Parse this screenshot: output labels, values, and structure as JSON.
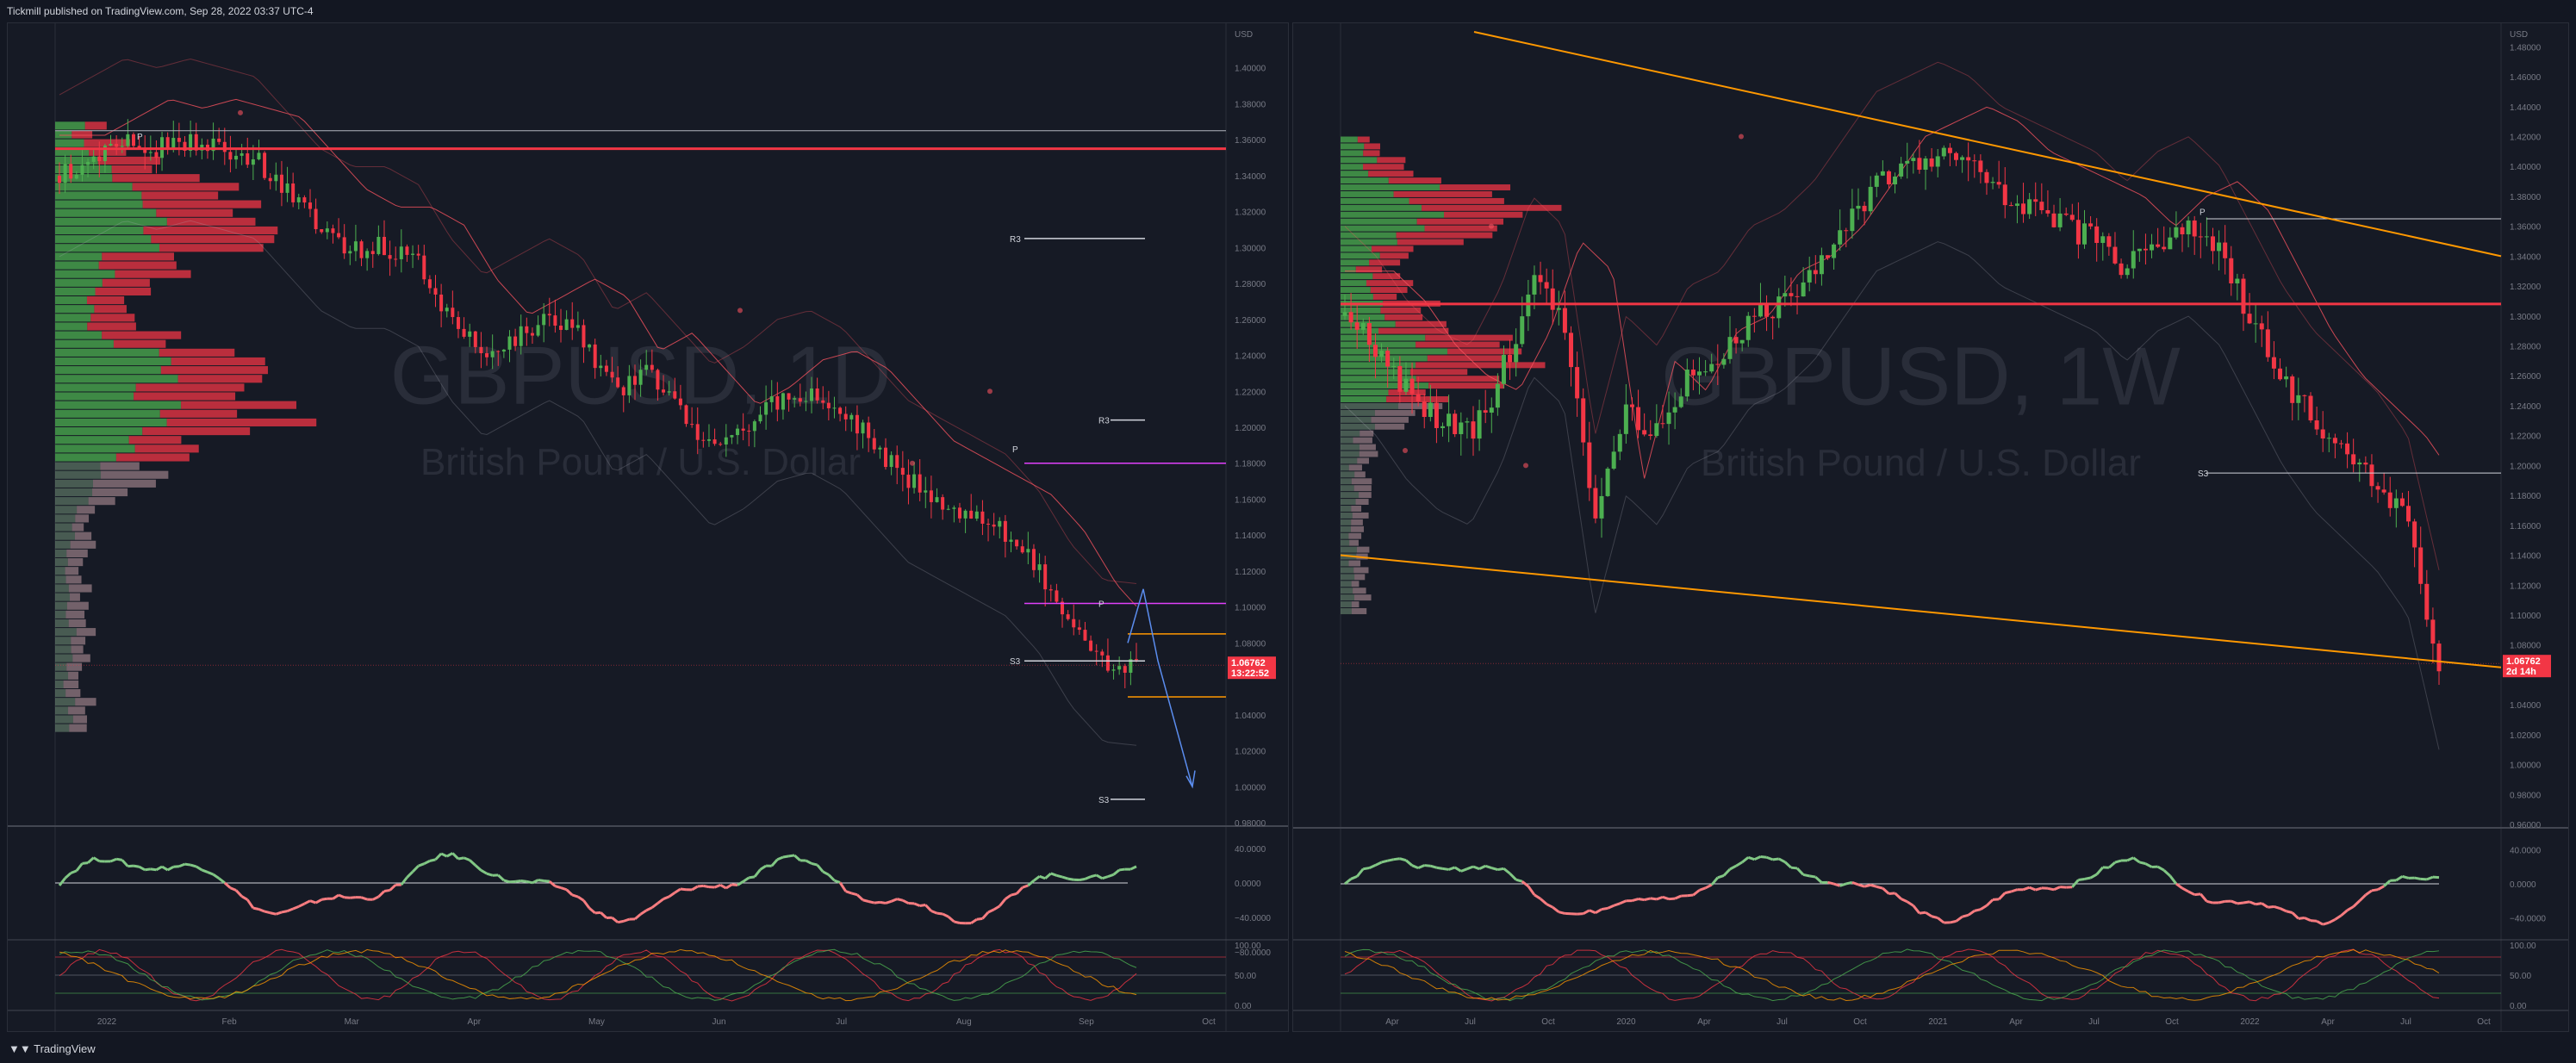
{
  "header": {
    "published": "Tickmill published on TradingView.com, Sep 28, 2022 03:37 UTC-4"
  },
  "footer": {
    "logo_text": "TradingView"
  },
  "colors": {
    "bull": "#4caf50",
    "bear": "#f23645",
    "orange": "#ff9800",
    "magenta": "#e040fb",
    "band": "#f7525f",
    "blue": "#2962ff"
  },
  "left": {
    "symbol": "GBPUSD, 1D",
    "description": "British Pound / U.S. Dollar",
    "currency": "USD",
    "last_price": "1.06762",
    "countdown": "13:22:52",
    "price_ticks": [
      "1.40000",
      "1.38000",
      "1.36000",
      "1.34000",
      "1.32000",
      "1.30000",
      "1.28000",
      "1.26000",
      "1.24000",
      "1.22000",
      "1.20000",
      "1.18000",
      "1.16000",
      "1.14000",
      "1.12000",
      "1.10000",
      "1.08000",
      "1.04000",
      "1.02000",
      "1.00000",
      "0.98000"
    ],
    "time_ticks": [
      "2022",
      "Feb",
      "Mar",
      "Apr",
      "May",
      "Jun",
      "Jul",
      "Aug",
      "Sep",
      "Oct"
    ],
    "levels": {
      "r3": "R3",
      "r3b": "R3",
      "p": "P",
      "p2": "P",
      "s3": "S3",
      "s3b": "S3",
      "p_top": "P"
    },
    "osc_ticks": [
      "40.0000",
      "0.0000",
      "−40.0000",
      "−80.0000"
    ],
    "stoch_ticks": [
      "100.00",
      "50.00",
      "0.00"
    ]
  },
  "right": {
    "symbol": "GBPUSD, 1W",
    "description": "British Pound / U.S. Dollar",
    "currency": "USD",
    "last_price": "1.06762",
    "countdown": "2d 14h",
    "price_ticks": [
      "1.48000",
      "1.46000",
      "1.44000",
      "1.42000",
      "1.40000",
      "1.38000",
      "1.36000",
      "1.34000",
      "1.32000",
      "1.30000",
      "1.28000",
      "1.26000",
      "1.24000",
      "1.22000",
      "1.20000",
      "1.18000",
      "1.16000",
      "1.14000",
      "1.12000",
      "1.10000",
      "1.08000",
      "1.04000",
      "1.02000",
      "1.00000",
      "0.98000",
      "0.96000"
    ],
    "time_ticks": [
      "Apr",
      "Jul",
      "Oct",
      "2020",
      "Apr",
      "Jul",
      "Oct",
      "2021",
      "Apr",
      "Jul",
      "Oct",
      "2022",
      "Apr",
      "Jul",
      "Oct"
    ],
    "levels": {
      "s3": "S3",
      "p": "P"
    },
    "osc_ticks": [
      "40.0000",
      "0.0000",
      "−40.0000"
    ],
    "stoch_ticks": [
      "100.00",
      "50.00",
      "0.00"
    ]
  },
  "chart_data": [
    {
      "type": "candlestick",
      "title": "GBPUSD, 1D",
      "subtitle": "British Pound / U.S. Dollar",
      "ylim": [
        0.98,
        1.42
      ],
      "x": [
        "2022",
        "Feb",
        "Mar",
        "Apr",
        "May",
        "Jun",
        "Jul",
        "Aug",
        "Sep",
        "Oct"
      ],
      "close_path": [
        1.34,
        1.35,
        1.36,
        1.355,
        1.36,
        1.355,
        1.35,
        1.33,
        1.31,
        1.3,
        1.3,
        1.29,
        1.26,
        1.24,
        1.25,
        1.26,
        1.25,
        1.22,
        1.23,
        1.21,
        1.19,
        1.2,
        1.215,
        1.22,
        1.21,
        1.19,
        1.17,
        1.16,
        1.15,
        1.14,
        1.12,
        1.09,
        1.07,
        1.068
      ],
      "last": 1.06762,
      "levels": {
        "R3": 1.305,
        "R3_lower": 1.204,
        "P": 1.18,
        "P_lower": 1.102,
        "S3": 1.07,
        "S3_lower": 0.993
      },
      "projection": [
        1.08,
        1.11,
        1.07,
        1.0
      ]
    },
    {
      "type": "candlestick",
      "title": "GBPUSD, 1W",
      "subtitle": "British Pound / U.S. Dollar",
      "ylim": [
        0.96,
        1.49
      ],
      "x": [
        "Apr",
        "Jul",
        "Oct",
        "2020",
        "Apr",
        "Jul",
        "Oct",
        "2021",
        "Apr",
        "Jul",
        "Oct",
        "2022",
        "Apr",
        "Jul",
        "Oct"
      ],
      "close_path": [
        1.3,
        1.28,
        1.25,
        1.23,
        1.22,
        1.26,
        1.32,
        1.3,
        1.16,
        1.24,
        1.22,
        1.26,
        1.27,
        1.3,
        1.31,
        1.33,
        1.36,
        1.39,
        1.4,
        1.41,
        1.4,
        1.38,
        1.37,
        1.36,
        1.35,
        1.33,
        1.35,
        1.36,
        1.34,
        1.3,
        1.26,
        1.23,
        1.21,
        1.19,
        1.16,
        1.07
      ],
      "last": 1.06762,
      "levels": {
        "S3": 1.195,
        "P": 1.365,
        "red_line": 1.308
      },
      "trendlines": [
        {
          "from": 1.49,
          "to": 1.34
        },
        {
          "from": 1.14,
          "to": 1.065
        }
      ]
    }
  ]
}
